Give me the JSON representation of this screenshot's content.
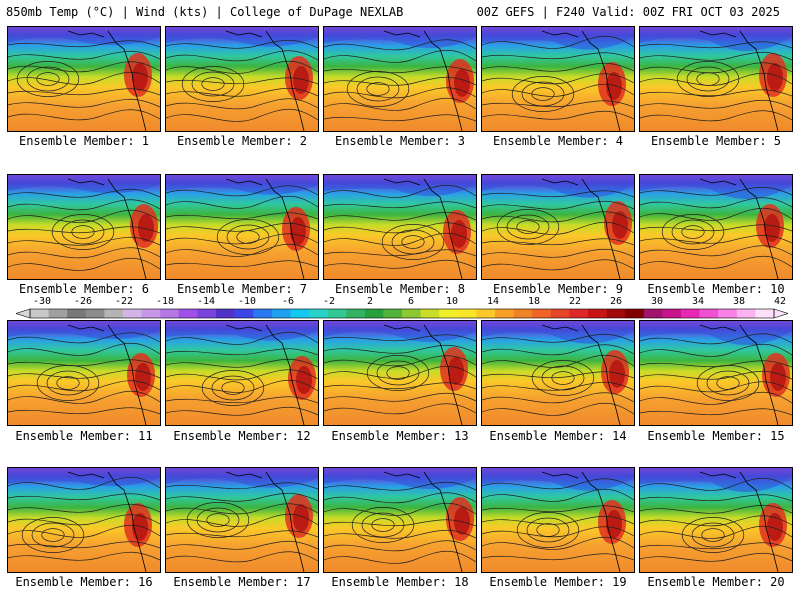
{
  "header": {
    "left_title": "850mb Temp (°C) | Wind (kts) | College of DuPage NEXLAB",
    "right_title": "00Z GEFS | F240 Valid: 00Z FRI OCT 03 2025"
  },
  "colorbar": {
    "labels": [
      "-30",
      "-26",
      "-22",
      "-18",
      "-14",
      "-10",
      "-6",
      "-2",
      "2",
      "6",
      "10",
      "14",
      "18",
      "22",
      "26",
      "30",
      "34",
      "38",
      "42"
    ],
    "colors": [
      "#c8c8c8",
      "#a0a0a0",
      "#787878",
      "#8c8c8c",
      "#b4b4b4",
      "#d2b4e6",
      "#c896e6",
      "#b478e6",
      "#a050e6",
      "#7846dc",
      "#5032c8",
      "#3c46e6",
      "#2878f0",
      "#1ea0f0",
      "#14c8f0",
      "#28d2c8",
      "#32c896",
      "#32b464",
      "#28a03c",
      "#50b43c",
      "#8cc832",
      "#c8dc28",
      "#f0f028",
      "#fae628",
      "#fac828",
      "#faa028",
      "#f08228",
      "#f06428",
      "#e64628",
      "#dc2828",
      "#c81414",
      "#a00a0a",
      "#800000",
      "#a0146e",
      "#c8148c",
      "#e628b4",
      "#f050d2",
      "#fa82e6",
      "#fcb4f0",
      "#fde0fa"
    ]
  },
  "members": [
    {
      "label": "Ensemble Member: 1"
    },
    {
      "label": "Ensemble Member: 2"
    },
    {
      "label": "Ensemble Member: 3"
    },
    {
      "label": "Ensemble Member: 4"
    },
    {
      "label": "Ensemble Member: 5"
    },
    {
      "label": "Ensemble Member: 6"
    },
    {
      "label": "Ensemble Member: 7"
    },
    {
      "label": "Ensemble Member: 8"
    },
    {
      "label": "Ensemble Member: 9"
    },
    {
      "label": "Ensemble Member: 10"
    },
    {
      "label": "Ensemble Member: 11"
    },
    {
      "label": "Ensemble Member: 12"
    },
    {
      "label": "Ensemble Member: 13"
    },
    {
      "label": "Ensemble Member: 14"
    },
    {
      "label": "Ensemble Member: 15"
    },
    {
      "label": "Ensemble Member: 16"
    },
    {
      "label": "Ensemble Member: 17"
    },
    {
      "label": "Ensemble Member: 18"
    },
    {
      "label": "Ensemble Member: 19"
    },
    {
      "label": "Ensemble Member: 20"
    }
  ]
}
